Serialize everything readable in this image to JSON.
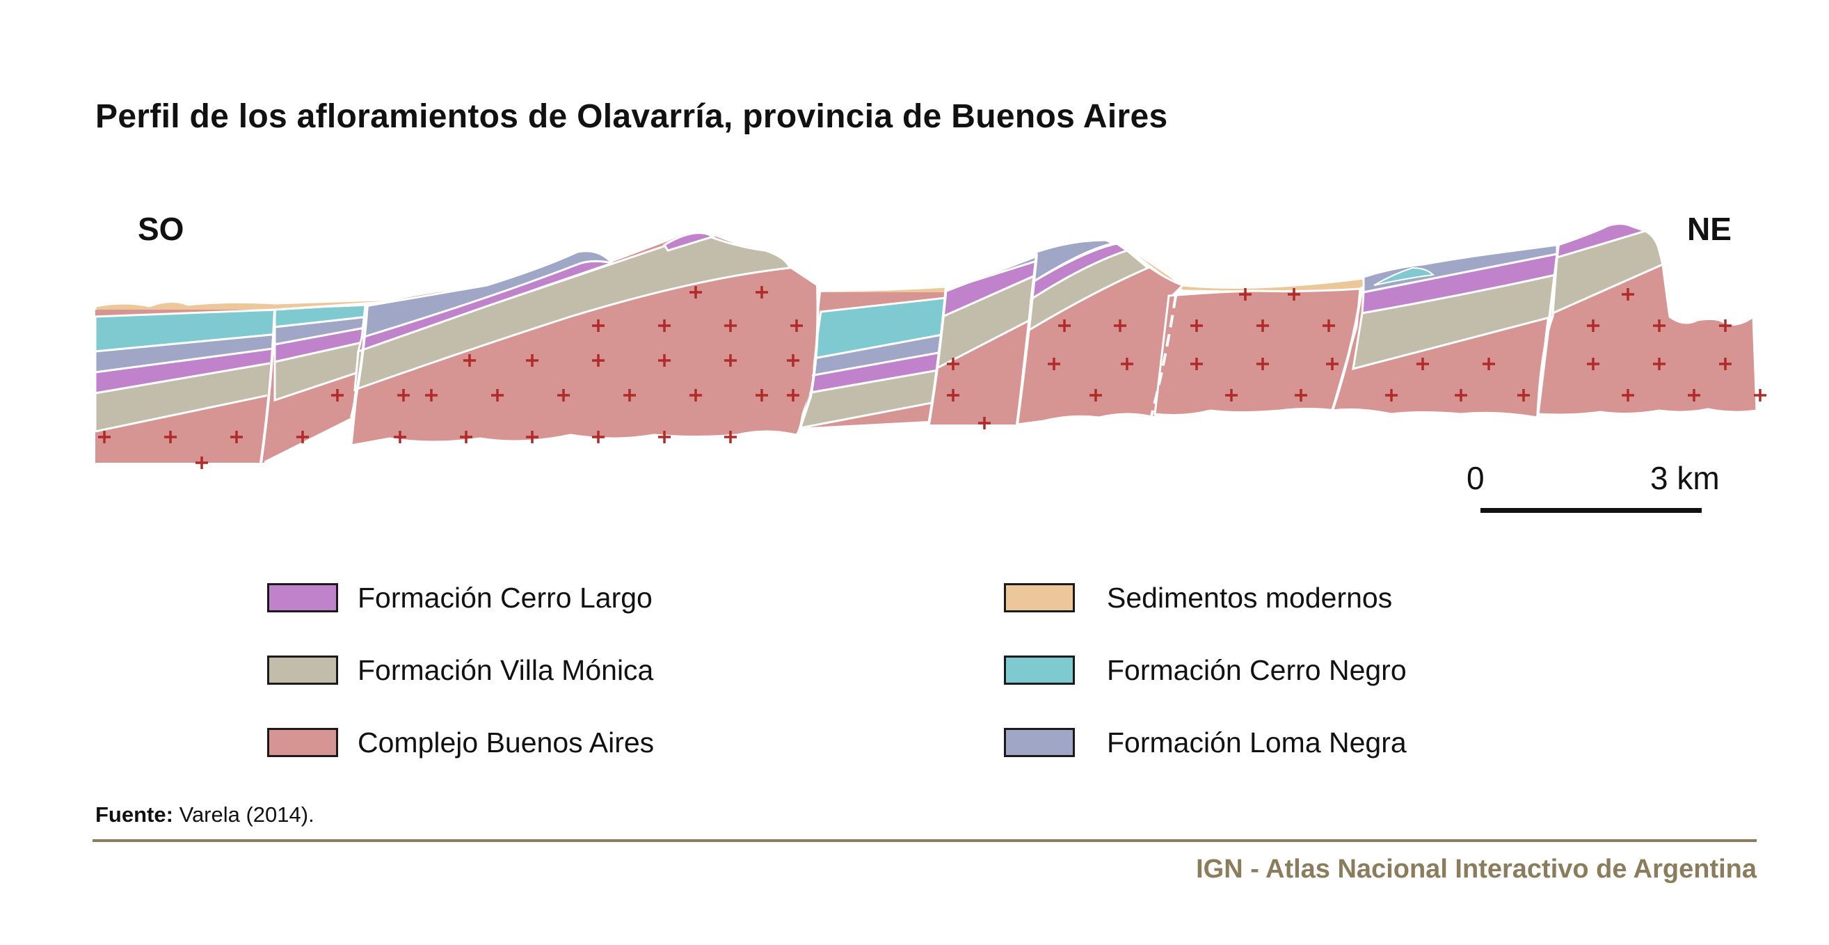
{
  "title": "Perfil de los afloramientos de Olavarría, provincia de Buenos Aires",
  "directions": {
    "left": "SO",
    "right": "NE"
  },
  "scale": {
    "start": "0",
    "end": "3 km"
  },
  "colors": {
    "cerro_largo": "#bf82cb",
    "villa_monica": "#c2bcab",
    "complejo_buenos_aires": "#d69492",
    "sedimentos_modernos": "#ecc79a",
    "cerro_negro": "#7fc9d0",
    "loma_negra": "#9fa6c6",
    "cross_marks": "#b02a2a"
  },
  "legend": [
    {
      "label": "Formación Cerro Largo",
      "color": "#bf82cb"
    },
    {
      "label": "Formación Villa Mónica",
      "color": "#c2bcab"
    },
    {
      "label": "Complejo Buenos Aires",
      "color": "#d69492"
    },
    {
      "label": "Sedimentos modernos",
      "color": "#ecc79a"
    },
    {
      "label": "Formación Cerro Negro",
      "color": "#7fc9d0"
    },
    {
      "label": "Formación Loma Negra",
      "color": "#9fa6c6"
    }
  ],
  "source": {
    "label": "Fuente:",
    "text": "Varela (2014)."
  },
  "credit": "IGN - Atlas Nacional Interactivo de Argentina"
}
